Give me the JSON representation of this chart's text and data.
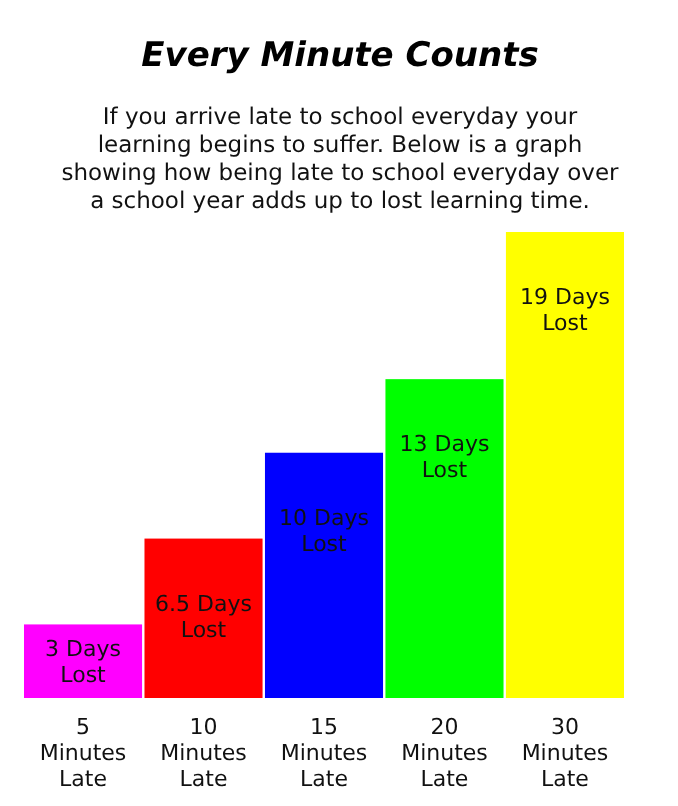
{
  "chart_data": {
    "type": "bar",
    "title": "Every Minute Counts",
    "subtitle": "If you arrive late to school everyday your learning begins to suffer. Below is a graph showing how being late to school everyday over a school year adds up to lost learning time.",
    "categories": [
      "5 Minutes Late",
      "10 Minutes Late",
      "15 Minutes Late",
      "20 Minutes Late",
      "30 Minutes Late"
    ],
    "values": [
      3,
      6.5,
      10,
      13,
      19
    ],
    "colors": [
      "#ff00ff",
      "#ff0000",
      "#0000ff",
      "#00ff00",
      "#ffff00"
    ],
    "value_labels": [
      "3 Days Lost",
      "6.5 Days Lost",
      "10 Days Lost",
      "13 Days Lost",
      "19 Days Lost"
    ]
  }
}
